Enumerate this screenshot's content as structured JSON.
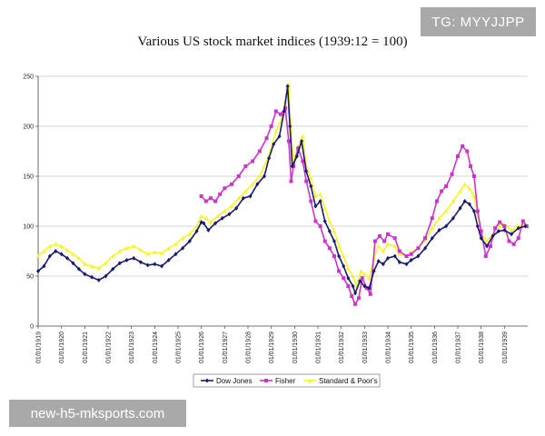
{
  "watermarks": {
    "top": "TG: MYYJJPP",
    "bottom": "new-h5-mksports.com"
  },
  "chart_data": {
    "type": "line",
    "title": "Various US stock market indices (1939:12 = 100)",
    "xlabel": "",
    "ylabel": "",
    "xlim": [
      1919.0,
      1940.0
    ],
    "ylim": [
      0,
      250
    ],
    "yticks": [
      0,
      50,
      100,
      150,
      200,
      250
    ],
    "xtick_labels": [
      "01/01/1919",
      "01/01/1920",
      "01/01/1921",
      "01/01/1922",
      "01/01/1923",
      "01/01/1924",
      "01/01/1925",
      "01/01/1926",
      "01/01/1927",
      "01/01/1928",
      "01/01/1929",
      "01/01/1930",
      "01/01/1931",
      "01/01/1932",
      "01/01/1933",
      "01/01/1934",
      "01/01/1935",
      "01/01/1936",
      "01/01/1937",
      "01/01/1938",
      "01/01/1939"
    ],
    "xtick_values": [
      1919,
      1920,
      1921,
      1922,
      1923,
      1924,
      1925,
      1926,
      1927,
      1928,
      1929,
      1930,
      1931,
      1932,
      1933,
      1934,
      1935,
      1936,
      1937,
      1938,
      1939
    ],
    "grid": true,
    "legend_position": "bottom",
    "series": [
      {
        "name": "Dow Jones",
        "color": "#1a1a6e",
        "marker": "diamond",
        "points": [
          [
            1919.0,
            55
          ],
          [
            1919.25,
            60
          ],
          [
            1919.5,
            70
          ],
          [
            1919.75,
            75
          ],
          [
            1920.0,
            72
          ],
          [
            1920.25,
            68
          ],
          [
            1920.5,
            63
          ],
          [
            1920.75,
            57
          ],
          [
            1921.0,
            52
          ],
          [
            1921.3,
            49
          ],
          [
            1921.6,
            46
          ],
          [
            1921.9,
            50
          ],
          [
            1922.2,
            57
          ],
          [
            1922.5,
            63
          ],
          [
            1922.8,
            66
          ],
          [
            1923.1,
            68
          ],
          [
            1923.4,
            64
          ],
          [
            1923.7,
            61
          ],
          [
            1924.0,
            62
          ],
          [
            1924.3,
            60
          ],
          [
            1924.6,
            66
          ],
          [
            1924.9,
            72
          ],
          [
            1925.2,
            78
          ],
          [
            1925.5,
            85
          ],
          [
            1925.8,
            95
          ],
          [
            1926.0,
            104
          ],
          [
            1926.1,
            103
          ],
          [
            1926.3,
            96
          ],
          [
            1926.6,
            103
          ],
          [
            1926.9,
            108
          ],
          [
            1927.2,
            112
          ],
          [
            1927.5,
            118
          ],
          [
            1927.8,
            128
          ],
          [
            1928.1,
            130
          ],
          [
            1928.4,
            142
          ],
          [
            1928.7,
            150
          ],
          [
            1928.9,
            168
          ],
          [
            1929.1,
            182
          ],
          [
            1929.35,
            190
          ],
          [
            1929.55,
            215
          ],
          [
            1929.7,
            240
          ],
          [
            1929.8,
            200
          ],
          [
            1929.9,
            160
          ],
          [
            1930.1,
            170
          ],
          [
            1930.3,
            185
          ],
          [
            1930.5,
            155
          ],
          [
            1930.7,
            140
          ],
          [
            1930.9,
            120
          ],
          [
            1931.1,
            125
          ],
          [
            1931.3,
            105
          ],
          [
            1931.5,
            95
          ],
          [
            1931.7,
            85
          ],
          [
            1931.9,
            70
          ],
          [
            1932.1,
            60
          ],
          [
            1932.3,
            48
          ],
          [
            1932.5,
            40
          ],
          [
            1932.6,
            33
          ],
          [
            1932.8,
            45
          ],
          [
            1933.0,
            40
          ],
          [
            1933.2,
            38
          ],
          [
            1933.4,
            55
          ],
          [
            1933.6,
            65
          ],
          [
            1933.8,
            62
          ],
          [
            1934.0,
            68
          ],
          [
            1934.3,
            70
          ],
          [
            1934.5,
            64
          ],
          [
            1934.8,
            62
          ],
          [
            1935.0,
            66
          ],
          [
            1935.3,
            70
          ],
          [
            1935.6,
            78
          ],
          [
            1935.9,
            88
          ],
          [
            1936.2,
            96
          ],
          [
            1936.5,
            100
          ],
          [
            1936.8,
            108
          ],
          [
            1937.1,
            118
          ],
          [
            1937.3,
            125
          ],
          [
            1937.5,
            122
          ],
          [
            1937.7,
            115
          ],
          [
            1937.85,
            100
          ],
          [
            1938.0,
            88
          ],
          [
            1938.25,
            80
          ],
          [
            1938.5,
            90
          ],
          [
            1938.75,
            95
          ],
          [
            1939.0,
            96
          ],
          [
            1939.3,
            92
          ],
          [
            1939.6,
            98
          ],
          [
            1939.9,
            100
          ]
        ]
      },
      {
        "name": "Fisher",
        "color": "#cc33cc",
        "marker": "square",
        "points": [
          [
            1926.0,
            130
          ],
          [
            1926.2,
            125
          ],
          [
            1926.4,
            128
          ],
          [
            1926.6,
            125
          ],
          [
            1926.8,
            132
          ],
          [
            1927.0,
            138
          ],
          [
            1927.3,
            142
          ],
          [
            1927.6,
            150
          ],
          [
            1927.9,
            160
          ],
          [
            1928.2,
            165
          ],
          [
            1928.5,
            175
          ],
          [
            1928.8,
            188
          ],
          [
            1929.0,
            200
          ],
          [
            1929.2,
            215
          ],
          [
            1929.4,
            212
          ],
          [
            1929.6,
            218
          ],
          [
            1929.75,
            185
          ],
          [
            1929.85,
            145
          ],
          [
            1929.95,
            160
          ],
          [
            1930.15,
            178
          ],
          [
            1930.35,
            165
          ],
          [
            1930.5,
            145
          ],
          [
            1930.7,
            125
          ],
          [
            1930.9,
            105
          ],
          [
            1931.1,
            100
          ],
          [
            1931.3,
            85
          ],
          [
            1931.5,
            78
          ],
          [
            1931.7,
            70
          ],
          [
            1931.9,
            55
          ],
          [
            1932.1,
            48
          ],
          [
            1932.3,
            40
          ],
          [
            1932.45,
            30
          ],
          [
            1932.6,
            22
          ],
          [
            1932.75,
            28
          ],
          [
            1932.9,
            48
          ],
          [
            1933.1,
            38
          ],
          [
            1933.25,
            32
          ],
          [
            1933.45,
            85
          ],
          [
            1933.65,
            90
          ],
          [
            1933.85,
            85
          ],
          [
            1934.0,
            92
          ],
          [
            1934.3,
            88
          ],
          [
            1934.5,
            75
          ],
          [
            1934.8,
            70
          ],
          [
            1935.0,
            72
          ],
          [
            1935.3,
            78
          ],
          [
            1935.6,
            88
          ],
          [
            1935.9,
            108
          ],
          [
            1936.1,
            125
          ],
          [
            1936.3,
            135
          ],
          [
            1936.5,
            140
          ],
          [
            1936.75,
            152
          ],
          [
            1937.0,
            170
          ],
          [
            1937.2,
            180
          ],
          [
            1937.4,
            175
          ],
          [
            1937.55,
            160
          ],
          [
            1937.7,
            150
          ],
          [
            1937.85,
            115
          ],
          [
            1938.0,
            95
          ],
          [
            1938.2,
            70
          ],
          [
            1938.4,
            80
          ],
          [
            1938.6,
            98
          ],
          [
            1938.8,
            104
          ],
          [
            1939.0,
            100
          ],
          [
            1939.2,
            85
          ],
          [
            1939.4,
            82
          ],
          [
            1939.6,
            88
          ],
          [
            1939.8,
            105
          ],
          [
            1939.95,
            100
          ]
        ]
      },
      {
        "name": "Standard & Poor's",
        "color": "#f5f52a",
        "marker": "triangle",
        "points": [
          [
            1919.0,
            70
          ],
          [
            1919.25,
            75
          ],
          [
            1919.5,
            80
          ],
          [
            1919.75,
            82
          ],
          [
            1920.0,
            80
          ],
          [
            1920.25,
            76
          ],
          [
            1920.5,
            72
          ],
          [
            1920.75,
            68
          ],
          [
            1921.0,
            62
          ],
          [
            1921.3,
            60
          ],
          [
            1921.6,
            58
          ],
          [
            1921.9,
            63
          ],
          [
            1922.2,
            70
          ],
          [
            1922.5,
            75
          ],
          [
            1922.8,
            78
          ],
          [
            1923.1,
            80
          ],
          [
            1923.4,
            76
          ],
          [
            1923.7,
            72
          ],
          [
            1924.0,
            74
          ],
          [
            1924.3,
            73
          ],
          [
            1924.6,
            78
          ],
          [
            1924.9,
            82
          ],
          [
            1925.2,
            88
          ],
          [
            1925.5,
            92
          ],
          [
            1925.8,
            100
          ],
          [
            1926.0,
            110
          ],
          [
            1926.2,
            108
          ],
          [
            1926.4,
            104
          ],
          [
            1926.7,
            110
          ],
          [
            1927.0,
            115
          ],
          [
            1927.3,
            120
          ],
          [
            1927.6,
            128
          ],
          [
            1927.9,
            135
          ],
          [
            1928.2,
            142
          ],
          [
            1928.5,
            150
          ],
          [
            1928.8,
            165
          ],
          [
            1929.0,
            178
          ],
          [
            1929.2,
            195
          ],
          [
            1929.4,
            205
          ],
          [
            1929.6,
            225
          ],
          [
            1929.75,
            242
          ],
          [
            1929.85,
            195
          ],
          [
            1929.95,
            165
          ],
          [
            1930.15,
            180
          ],
          [
            1930.35,
            190
          ],
          [
            1930.5,
            160
          ],
          [
            1930.7,
            148
          ],
          [
            1930.9,
            130
          ],
          [
            1931.1,
            132
          ],
          [
            1931.3,
            118
          ],
          [
            1931.5,
            105
          ],
          [
            1931.7,
            95
          ],
          [
            1931.9,
            80
          ],
          [
            1932.1,
            70
          ],
          [
            1932.3,
            58
          ],
          [
            1932.5,
            50
          ],
          [
            1932.65,
            40
          ],
          [
            1932.85,
            55
          ],
          [
            1933.0,
            52
          ],
          [
            1933.2,
            48
          ],
          [
            1933.4,
            68
          ],
          [
            1933.6,
            80
          ],
          [
            1933.8,
            75
          ],
          [
            1934.0,
            82
          ],
          [
            1934.3,
            80
          ],
          [
            1934.5,
            72
          ],
          [
            1934.8,
            70
          ],
          [
            1935.0,
            74
          ],
          [
            1935.3,
            78
          ],
          [
            1935.6,
            86
          ],
          [
            1935.9,
            98
          ],
          [
            1936.2,
            108
          ],
          [
            1936.5,
            115
          ],
          [
            1936.8,
            125
          ],
          [
            1937.1,
            135
          ],
          [
            1937.3,
            142
          ],
          [
            1937.5,
            138
          ],
          [
            1937.7,
            130
          ],
          [
            1937.85,
            112
          ],
          [
            1938.0,
            92
          ],
          [
            1938.25,
            85
          ],
          [
            1938.5,
            92
          ],
          [
            1938.75,
            100
          ],
          [
            1939.0,
            102
          ],
          [
            1939.3,
            96
          ],
          [
            1939.6,
            100
          ],
          [
            1939.9,
            102
          ]
        ]
      }
    ]
  }
}
